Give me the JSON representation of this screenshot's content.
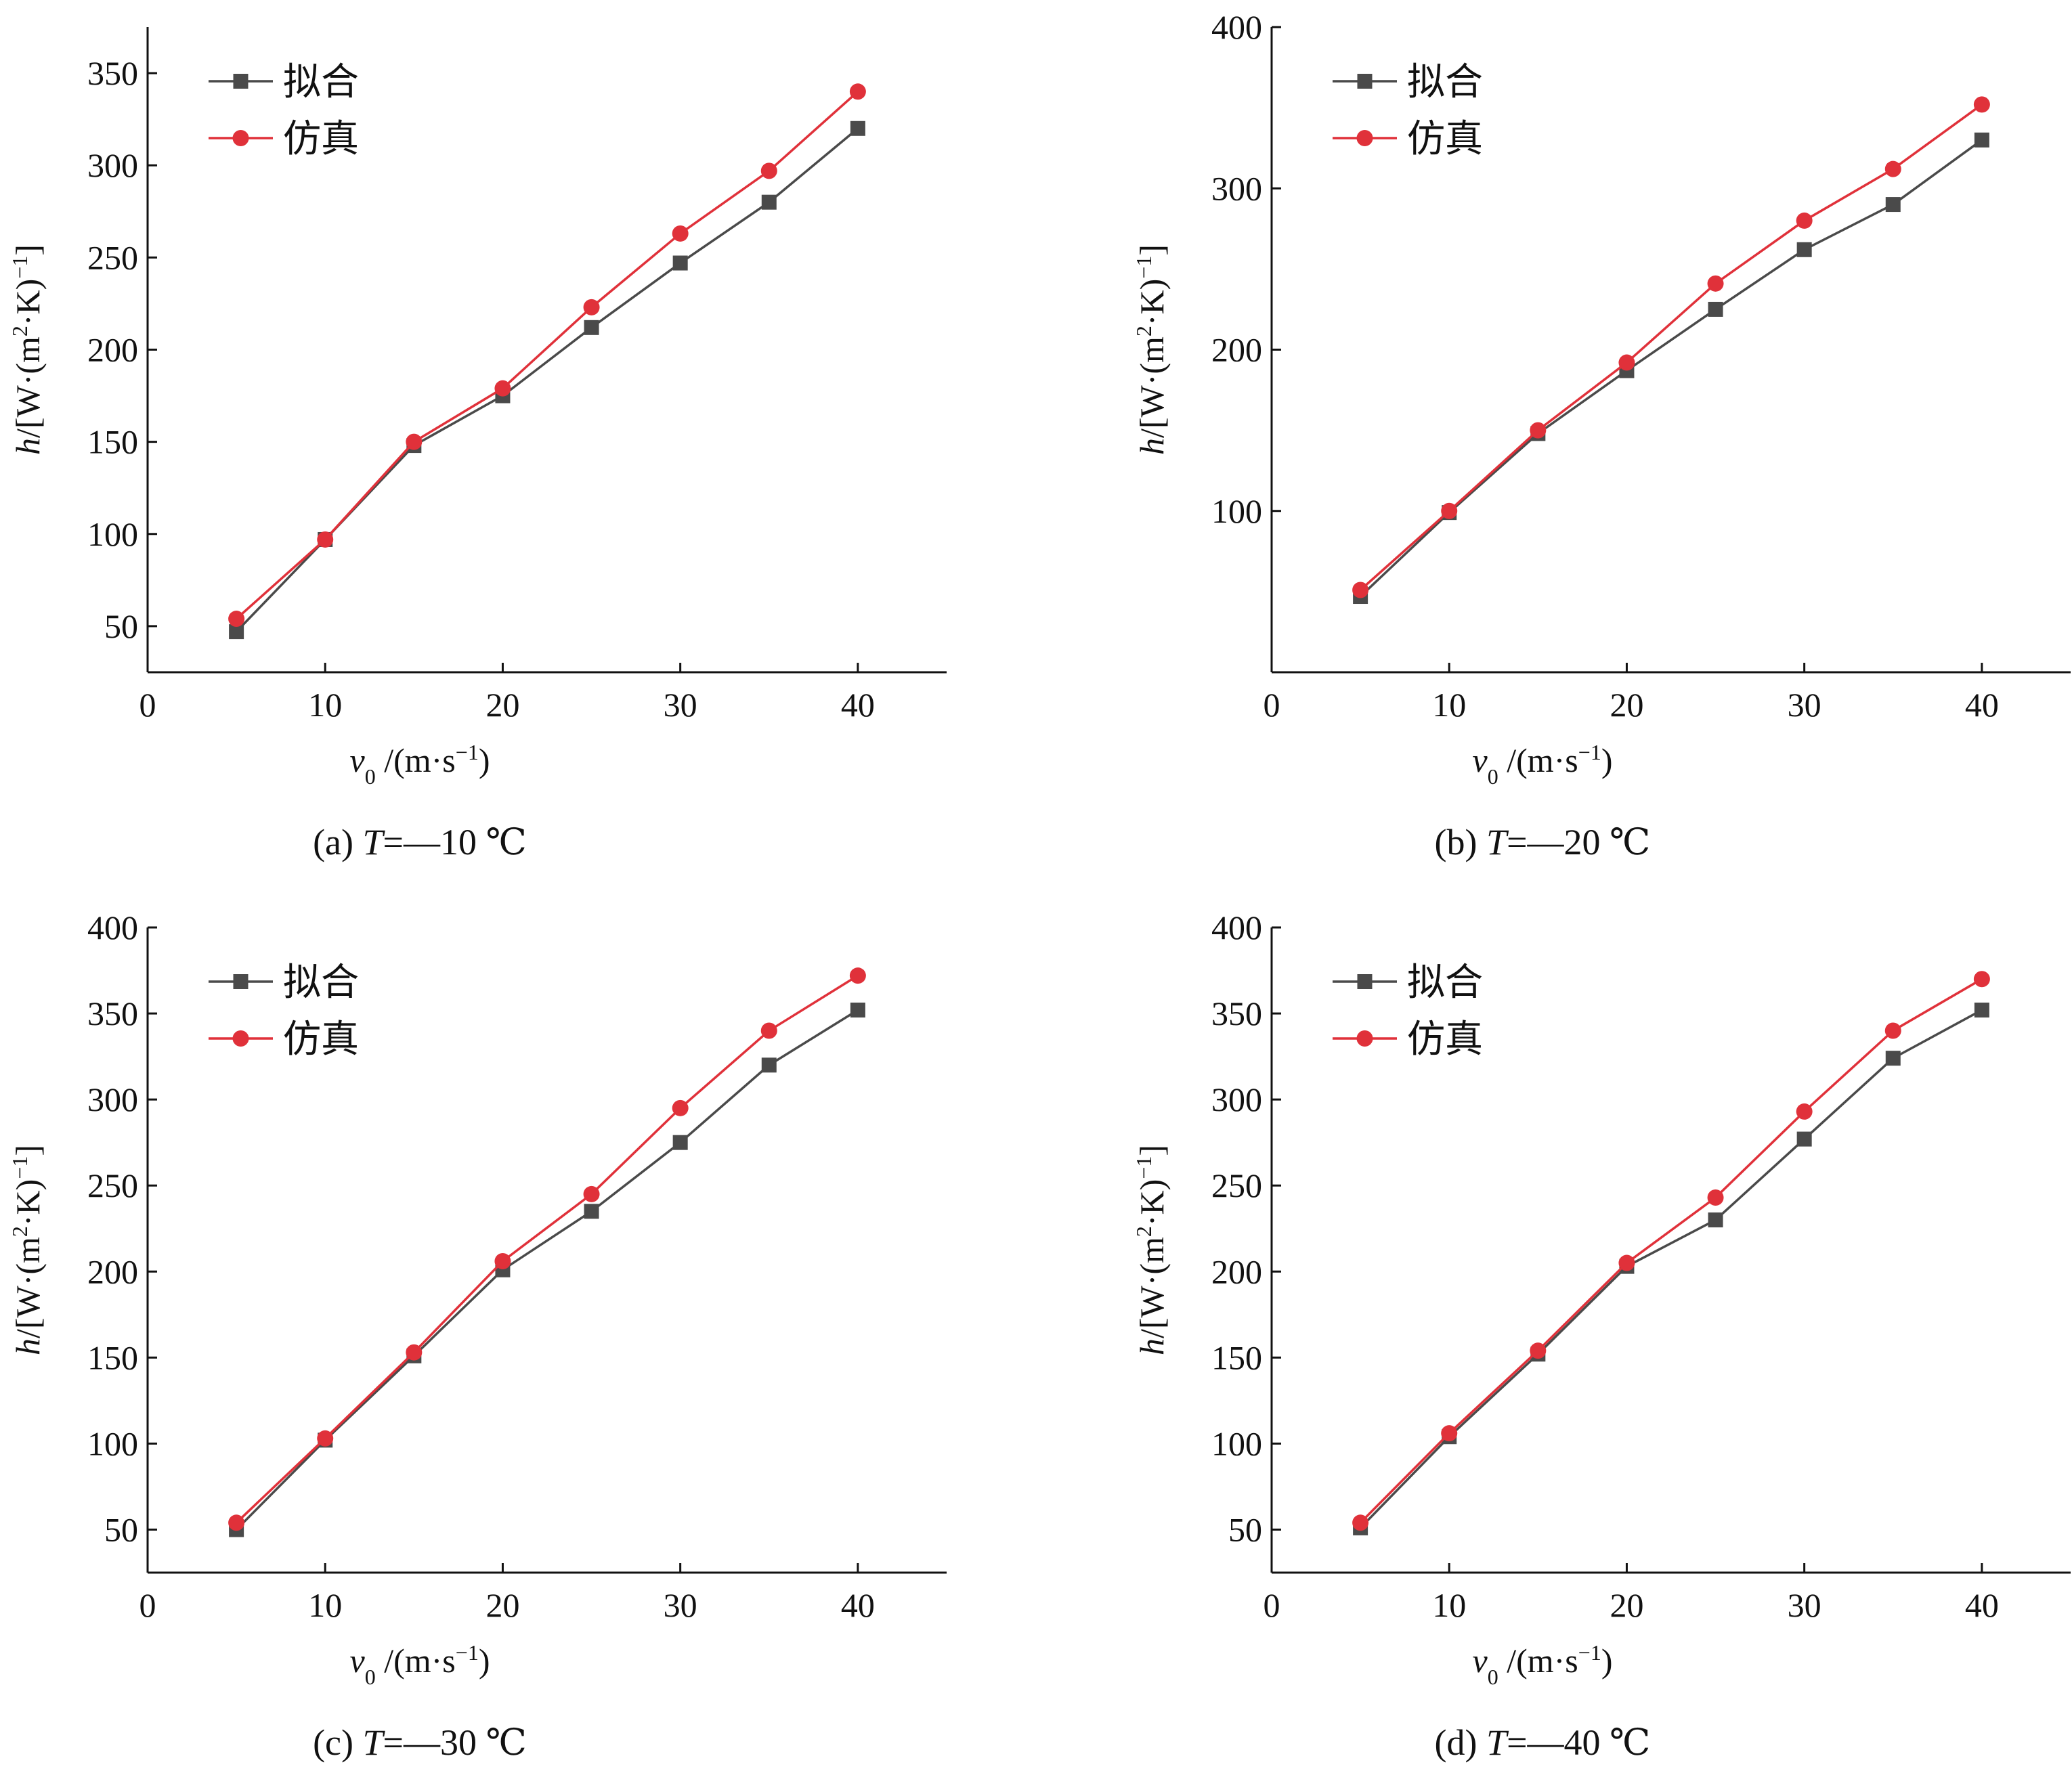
{
  "colors": {
    "fit": "#4a4a4a",
    "sim": "#e0313a",
    "axis": "#111111"
  },
  "shared": {
    "xlabel": "v0/(m·s−1)",
    "ylabel": "h/[W·(m2·K)−1]",
    "legend": [
      "拟合",
      "仿真"
    ],
    "xticks": [
      "0",
      "10",
      "20",
      "30",
      "40"
    ]
  },
  "chart_data": [
    {
      "type": "line",
      "caption": "(a)  T=—10 ℃",
      "x": [
        5,
        10,
        15,
        20,
        25,
        30,
        35,
        40
      ],
      "xlim": [
        0,
        45
      ],
      "ylim": [
        25,
        375
      ],
      "yticks": [
        50,
        100,
        150,
        200,
        250,
        300,
        350
      ],
      "series": [
        {
          "name": "拟合",
          "marker": "square",
          "values": [
            47,
            97,
            148,
            175,
            212,
            247,
            280,
            320
          ]
        },
        {
          "name": "仿真",
          "marker": "circle",
          "values": [
            54,
            97,
            150,
            179,
            223,
            263,
            297,
            340
          ]
        }
      ]
    },
    {
      "type": "line",
      "caption": "(b)  T=—20 ℃",
      "x": [
        5,
        10,
        15,
        20,
        25,
        30,
        35,
        40
      ],
      "xlim": [
        0,
        45
      ],
      "ylim": [
        0,
        400
      ],
      "yticks": [
        100,
        200,
        300,
        400
      ],
      "series": [
        {
          "name": "拟合",
          "marker": "square",
          "values": [
            47,
            99,
            148,
            187,
            225,
            262,
            290,
            330
          ]
        },
        {
          "name": "仿真",
          "marker": "circle",
          "values": [
            51,
            100,
            150,
            192,
            241,
            280,
            312,
            352
          ]
        }
      ]
    },
    {
      "type": "line",
      "caption": "(c)  T=—30 ℃",
      "x": [
        5,
        10,
        15,
        20,
        25,
        30,
        35,
        40
      ],
      "xlim": [
        0,
        45
      ],
      "ylim": [
        25,
        400
      ],
      "yticks": [
        50,
        100,
        150,
        200,
        250,
        300,
        350,
        400
      ],
      "series": [
        {
          "name": "拟合",
          "marker": "square",
          "values": [
            50,
            102,
            151,
            201,
            235,
            275,
            320,
            352
          ]
        },
        {
          "name": "仿真",
          "marker": "circle",
          "values": [
            54,
            103,
            153,
            206,
            245,
            295,
            340,
            372
          ]
        }
      ]
    },
    {
      "type": "line",
      "caption": "(d)  T=—40 ℃",
      "x": [
        5,
        10,
        15,
        20,
        25,
        30,
        35,
        40
      ],
      "xlim": [
        0,
        45
      ],
      "ylim": [
        25,
        400
      ],
      "yticks": [
        50,
        100,
        150,
        200,
        250,
        300,
        350,
        400
      ],
      "series": [
        {
          "name": "拟合",
          "marker": "square",
          "values": [
            51,
            104,
            152,
            203,
            230,
            277,
            324,
            352
          ]
        },
        {
          "name": "仿真",
          "marker": "circle",
          "values": [
            54,
            106,
            154,
            205,
            243,
            293,
            340,
            370
          ]
        }
      ]
    }
  ]
}
